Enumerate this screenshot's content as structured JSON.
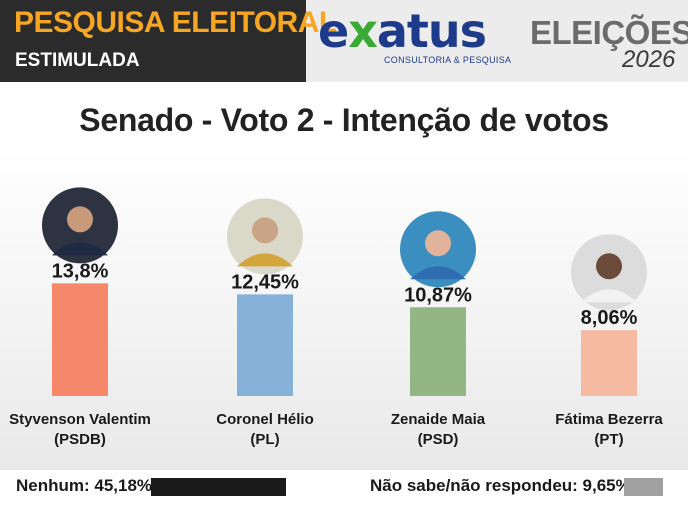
{
  "header": {
    "tag_title": "PESQUISA ELEITORAL",
    "tag_subtitle": "ESTIMULADA",
    "logo_text_before": "e",
    "logo_text_x": "x",
    "logo_text_after": "atus",
    "logo_tagline": "CONSULTORIA & PESQUISA",
    "election_title": "ELEIÇÕES",
    "election_year": "2026"
  },
  "colors": {
    "header_dark": "#2b2b2b",
    "tag_orange": "#f6a623",
    "logo_blue": "#1e3a8a",
    "logo_green": "#3aaa35",
    "footer_none": "#1a1a1a",
    "footer_unknown": "#a0a0a0"
  },
  "chart_data": {
    "type": "bar",
    "title": "Senado - Voto 2 - Intenção de votos",
    "categories": [
      "Styvenson Valentim",
      "Coronel Hélio",
      "Zenaide Maia",
      "Fátima Bezerra"
    ],
    "parties": [
      "(PSDB)",
      "(PL)",
      "(PSD)",
      "(PT)"
    ],
    "values": [
      13.8,
      12.45,
      10.87,
      8.06
    ],
    "value_labels": [
      "13,8%",
      "12,45%",
      "10,87%",
      "8,06%"
    ],
    "bar_colors": [
      "#f5886a",
      "#86b2d9",
      "#93b784",
      "#f6b9a2"
    ],
    "photo_icons": [
      "candidate-photo-styvenson-icon",
      "candidate-photo-coronel-helio-icon",
      "candidate-photo-zenaide-icon",
      "candidate-photo-fatima-icon"
    ],
    "ylim": [
      0,
      14.7
    ],
    "grid": false,
    "legend": "none"
  },
  "footer": {
    "none_label": "Nenhum: 45,18%",
    "none_value": 45.18,
    "unknown_label": "Não sabe/não respondeu: 9,65%",
    "unknown_value": 9.65
  }
}
